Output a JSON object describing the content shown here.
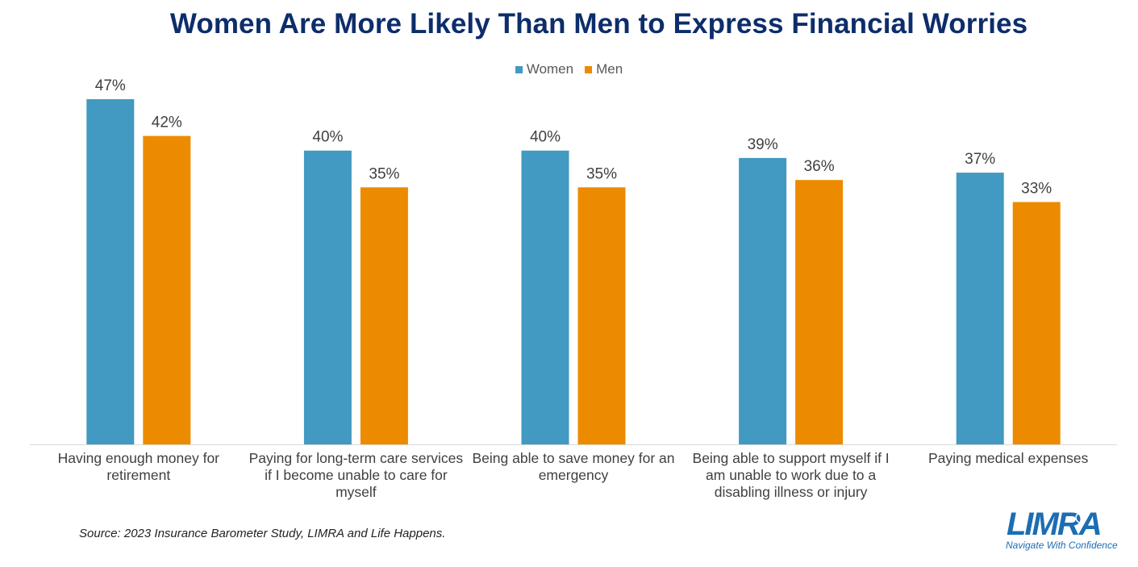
{
  "chart_data": {
    "type": "bar",
    "title": "Women Are More Likely Than Men to Express Financial Worries",
    "categories": [
      "Having enough money for retirement",
      "Paying for long-term care services if I become unable to care for myself",
      "Being able to save money for an emergency",
      "Being able to support myself if I am unable to work due to a disabling illness or injury",
      "Paying medical expenses"
    ],
    "series": [
      {
        "name": "Women",
        "color": "#4299c1",
        "values": [
          47,
          40,
          40,
          39,
          37
        ],
        "labels": [
          "47%",
          "40%",
          "40%",
          "39%",
          "37%"
        ]
      },
      {
        "name": "Men",
        "color": "#ec8b00",
        "values": [
          42,
          35,
          35,
          36,
          33
        ],
        "labels": [
          "42%",
          "35%",
          "35%",
          "36%",
          "33%"
        ]
      }
    ],
    "ylim": [
      0,
      50
    ],
    "legend": "top-center",
    "grid": false
  },
  "source": "Source: 2023 Insurance Barometer Study, LIMRA and Life Happens.",
  "logo": {
    "name": "LIMRA",
    "tagline": "Navigate With Confidence",
    "color": "#1c6db3"
  }
}
